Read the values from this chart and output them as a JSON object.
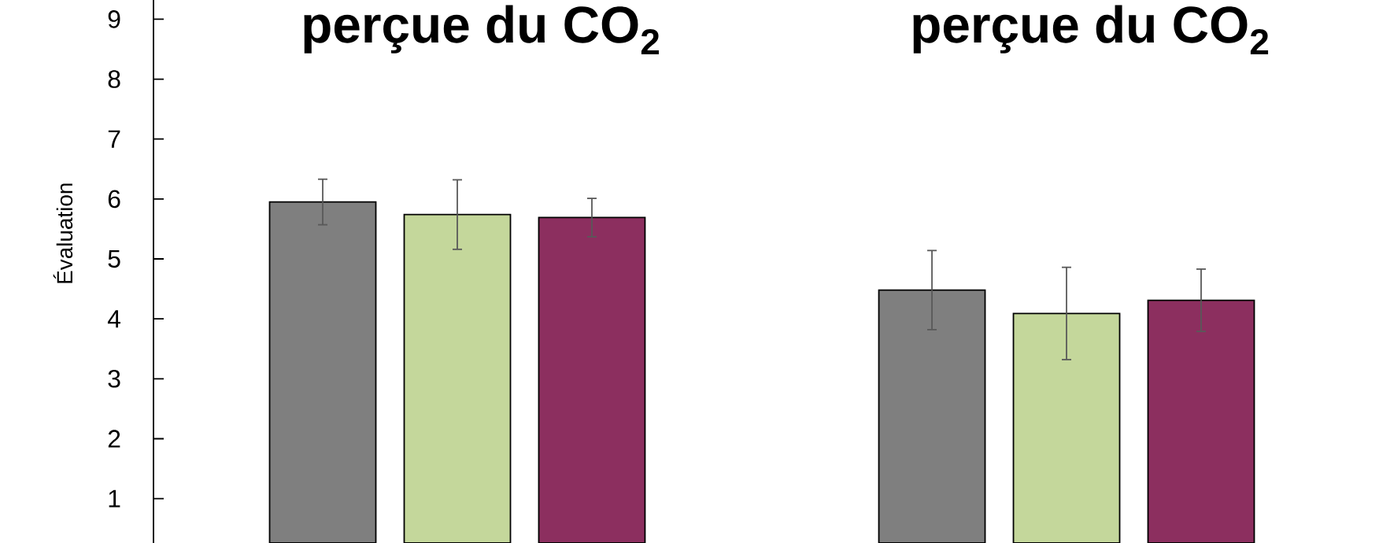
{
  "chart_data": {
    "type": "bar",
    "categories": [
      "perçue du CO$_{2}$",
      "perçue du CO$_{2}$"
    ],
    "ylabel": "Évaluation",
    "ylim": [
      0.26,
      9.32
    ],
    "yticks": [
      1,
      2,
      3,
      4,
      5,
      6,
      7,
      8,
      9
    ],
    "series": [
      {
        "color": "#7f7f7f",
        "values": [
          5.95,
          4.48
        ],
        "errors": [
          0.38,
          0.66
        ]
      },
      {
        "color": "#c4d79b",
        "values": [
          5.74,
          4.09
        ],
        "errors": [
          0.58,
          0.77
        ]
      },
      {
        "color": "#8c2f5f",
        "values": [
          5.69,
          4.31
        ],
        "errors": [
          0.32,
          0.52
        ]
      }
    ]
  }
}
